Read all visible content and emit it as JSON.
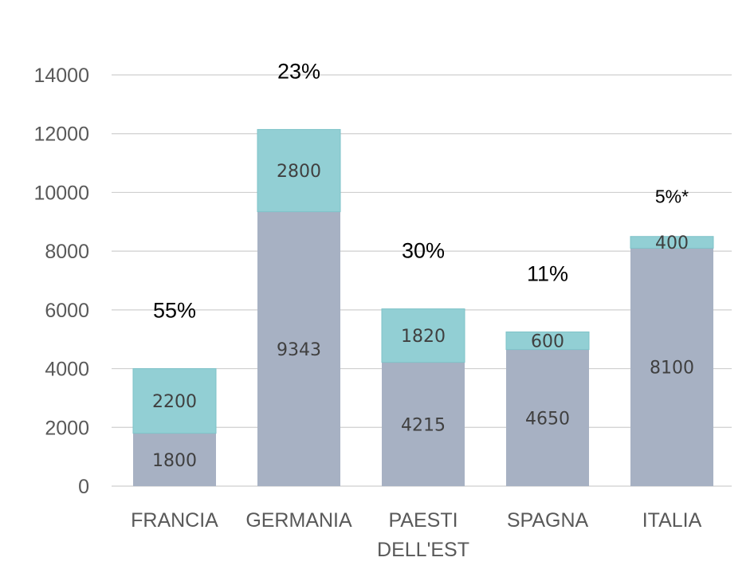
{
  "chart_data": {
    "type": "bar",
    "stacked": true,
    "categories": [
      [
        "FRANCIA"
      ],
      [
        "GERMANIA"
      ],
      [
        "PAESTI",
        "DELL'EST"
      ],
      [
        "SPAGNA"
      ],
      [
        "ITALIA"
      ]
    ],
    "series": [
      {
        "values": [
          1800,
          9343,
          4215,
          4650,
          8100
        ],
        "labels": [
          "1800",
          "9343",
          "4215",
          "4650",
          "8100"
        ],
        "color": "#a7b1c3"
      },
      {
        "values": [
          2200,
          2800,
          1820,
          600,
          400
        ],
        "labels": [
          "2200",
          "2800",
          "1820",
          "600",
          "400"
        ],
        "color": "#92cfd4"
      }
    ],
    "annotations": [
      "55%",
      "23%",
      "30%",
      "11%",
      "5%*"
    ],
    "ylim": [
      0,
      14000
    ],
    "yticks": [
      0,
      2000,
      4000,
      6000,
      8000,
      10000,
      12000,
      14000
    ],
    "grid": true,
    "legend": "none",
    "title": "",
    "xlabel": "",
    "ylabel": ""
  }
}
